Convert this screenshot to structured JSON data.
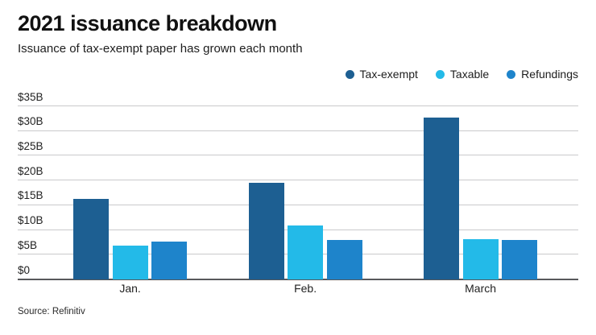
{
  "header": {
    "title": "2021 issuance breakdown",
    "subtitle": "Issuance of tax-exempt paper has grown each month"
  },
  "footer": {
    "source": "Source: Refinitiv"
  },
  "colors": {
    "tax_exempt": "#1d5f92",
    "taxable": "#23bae8",
    "refundings": "#1e84cb",
    "gridline": "#c9cacb",
    "baseline": "#58595b"
  },
  "chart_data": {
    "type": "bar",
    "title": "2021 issuance breakdown",
    "subtitle": "Issuance of tax-exempt paper has grown each month",
    "categories": [
      "Jan.",
      "Feb.",
      "March"
    ],
    "series": [
      {
        "name": "Tax-exempt",
        "color": "#1d5f92",
        "values": [
          16.3,
          19.6,
          32.8
        ]
      },
      {
        "name": "Taxable",
        "color": "#23bae8",
        "values": [
          6.9,
          10.9,
          8.2
        ]
      },
      {
        "name": "Refundings",
        "color": "#1e84cb",
        "values": [
          7.6,
          7.9,
          7.9
        ]
      }
    ],
    "unit": "billions USD",
    "ylim": [
      0,
      35
    ],
    "y_tick_step": 5,
    "y_tick_labels": [
      "$0",
      "$5B",
      "$10B",
      "$15B",
      "$20B",
      "$25B",
      "$30B",
      "$35B"
    ],
    "grid": true,
    "legend_position": "top-right",
    "source": "Source: Refinitiv"
  }
}
